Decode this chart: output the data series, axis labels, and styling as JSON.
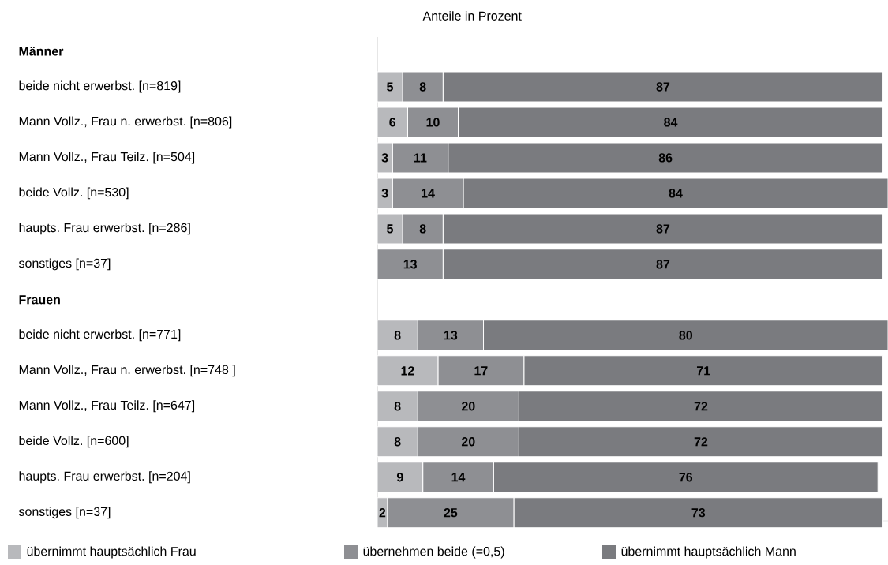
{
  "chart_data": {
    "type": "bar",
    "orientation": "horizontal",
    "stacked": true,
    "data_labels": true,
    "legend": "bottom",
    "xlabel": "Anteile in Prozent",
    "categories": [
      "Männer",
      "beide nicht erwerbst. [n=819]",
      "Mann Vollz., Frau n. erwerbst. [n=806]",
      "Mann Vollz., Frau Teilz. [n=504]",
      "beide Vollz. [n=530]",
      "haupts. Frau erwerbst. [n=286]",
      "sonstiges [n=37]",
      "Frauen",
      "beide nicht erwerbst. [n=771]",
      "Mann Vollz., Frau n. erwerbst. [n=748 ]",
      "Mann Vollz., Frau Teilz. [n=647]",
      "beide Vollz. [n=600]",
      "haupts. Frau erwerbst. [n=204]",
      "sonstiges [n=37]"
    ],
    "series": [
      {
        "name": "übernimmt hauptsächlich Frau",
        "color": "#b8b9bc",
        "values": [
          null,
          5,
          6,
          3,
          3,
          5,
          null,
          null,
          8,
          12,
          8,
          8,
          9,
          2
        ]
      },
      {
        "name": "übernehmen beide (=0,5)",
        "color": "#8e8f93",
        "values": [
          null,
          8,
          10,
          11,
          14,
          8,
          13,
          null,
          13,
          17,
          20,
          20,
          14,
          25
        ]
      },
      {
        "name": "übernimmt hauptsächlich Mann",
        "color": "#7a7b7f",
        "values": [
          null,
          87,
          84,
          86,
          84,
          87,
          87,
          null,
          80,
          71,
          72,
          72,
          76,
          73
        ]
      }
    ]
  }
}
